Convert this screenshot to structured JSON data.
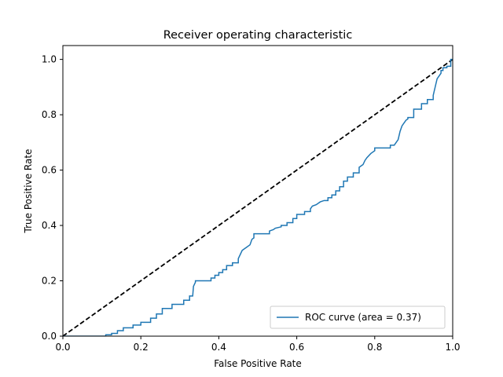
{
  "chart_data": {
    "type": "line",
    "title": "Receiver operating characteristic",
    "xlabel": "False Positive Rate",
    "ylabel": "True Positive Rate",
    "xlim": [
      0,
      1
    ],
    "ylim": [
      0,
      1.05
    ],
    "xticks": [
      0.0,
      0.2,
      0.4,
      0.6,
      0.8,
      1.0
    ],
    "yticks": [
      0.0,
      0.2,
      0.4,
      0.6,
      0.8,
      1.0
    ],
    "xtick_labels": [
      "0.0",
      "0.2",
      "0.4",
      "0.6",
      "0.8",
      "1.0"
    ],
    "ytick_labels": [
      "0.0",
      "0.2",
      "0.4",
      "0.6",
      "0.8",
      "1.0"
    ],
    "grid": false,
    "legend_position": "lower-right",
    "series": [
      {
        "name": "ROC curve (area = 0.37)",
        "color": "#1f77b4",
        "style": "solid",
        "x": [
          0.0,
          0.11,
          0.11,
          0.125,
          0.125,
          0.14,
          0.14,
          0.155,
          0.155,
          0.18,
          0.18,
          0.2,
          0.2,
          0.225,
          0.225,
          0.24,
          0.24,
          0.255,
          0.255,
          0.28,
          0.28,
          0.31,
          0.31,
          0.325,
          0.325,
          0.333,
          0.335,
          0.34,
          0.34,
          0.38,
          0.38,
          0.39,
          0.39,
          0.4,
          0.4,
          0.41,
          0.41,
          0.42,
          0.42,
          0.435,
          0.435,
          0.45,
          0.45,
          0.46,
          0.47,
          0.48,
          0.485,
          0.49,
          0.49,
          0.53,
          0.53,
          0.54,
          0.545,
          0.56,
          0.56,
          0.575,
          0.575,
          0.59,
          0.59,
          0.6,
          0.6,
          0.62,
          0.62,
          0.635,
          0.635,
          0.64,
          0.65,
          0.66,
          0.67,
          0.68,
          0.68,
          0.69,
          0.69,
          0.7,
          0.7,
          0.71,
          0.71,
          0.72,
          0.72,
          0.73,
          0.73,
          0.745,
          0.745,
          0.76,
          0.76,
          0.77,
          0.775,
          0.78,
          0.79,
          0.8,
          0.8,
          0.84,
          0.84,
          0.85,
          0.855,
          0.86,
          0.865,
          0.87,
          0.88,
          0.885,
          0.885,
          0.9,
          0.9,
          0.92,
          0.92,
          0.935,
          0.935,
          0.95,
          0.95,
          0.955,
          0.96,
          0.97,
          0.97,
          0.975,
          0.975,
          0.985,
          0.985,
          0.995,
          0.995,
          1.0
        ],
        "y": [
          0.0,
          0.0,
          0.005,
          0.005,
          0.01,
          0.01,
          0.02,
          0.02,
          0.03,
          0.03,
          0.04,
          0.04,
          0.05,
          0.05,
          0.065,
          0.065,
          0.08,
          0.08,
          0.1,
          0.1,
          0.115,
          0.115,
          0.13,
          0.13,
          0.145,
          0.145,
          0.18,
          0.195,
          0.2,
          0.2,
          0.21,
          0.21,
          0.22,
          0.22,
          0.23,
          0.23,
          0.24,
          0.24,
          0.255,
          0.255,
          0.265,
          0.265,
          0.28,
          0.31,
          0.32,
          0.33,
          0.35,
          0.355,
          0.37,
          0.37,
          0.38,
          0.385,
          0.39,
          0.395,
          0.4,
          0.4,
          0.41,
          0.41,
          0.425,
          0.425,
          0.44,
          0.44,
          0.45,
          0.45,
          0.46,
          0.47,
          0.475,
          0.485,
          0.49,
          0.49,
          0.5,
          0.5,
          0.51,
          0.51,
          0.525,
          0.525,
          0.54,
          0.54,
          0.56,
          0.56,
          0.575,
          0.575,
          0.59,
          0.59,
          0.61,
          0.62,
          0.635,
          0.645,
          0.66,
          0.67,
          0.68,
          0.68,
          0.69,
          0.69,
          0.7,
          0.71,
          0.74,
          0.76,
          0.78,
          0.785,
          0.79,
          0.79,
          0.82,
          0.82,
          0.84,
          0.84,
          0.855,
          0.855,
          0.87,
          0.9,
          0.93,
          0.95,
          0.96,
          0.96,
          0.97,
          0.97,
          0.975,
          0.975,
          1.0,
          1.0
        ]
      },
      {
        "color": "#000000",
        "style": "dashed",
        "x": [
          0,
          1
        ],
        "y": [
          0,
          1
        ]
      }
    ]
  }
}
